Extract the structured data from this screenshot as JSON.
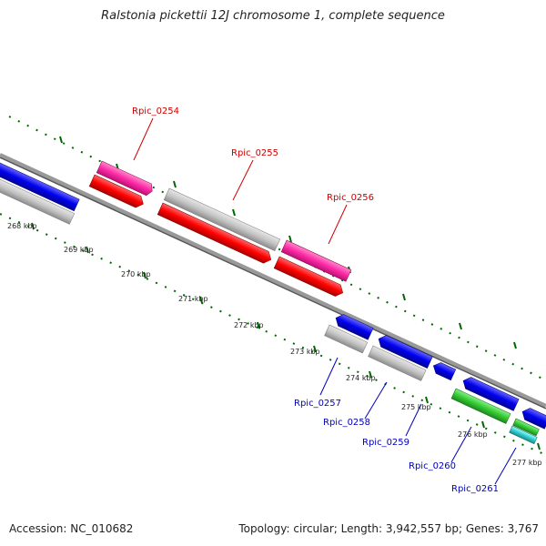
{
  "title": "Ralstonia pickettii 12J chromosome 1, complete sequence",
  "accession": "Accession: NC_010682",
  "summary": "Topology: circular; Length: 3,942,557 bp; Genes: 3,767",
  "tick_labels": [
    "268 kbp",
    "269 kbp",
    "270 kbp",
    "271 kbp",
    "272 kbp",
    "273 kbp",
    "274 kbp",
    "275 kbp",
    "276 kbp",
    "277 kbp"
  ],
  "gene_labels_top": [
    "Rpic_0254",
    "Rpic_0255",
    "Rpic_0256"
  ],
  "gene_labels_bottom": [
    "Rpic_0257",
    "Rpic_0258",
    "Rpic_0259",
    "Rpic_0260",
    "Rpic_0261"
  ],
  "colors": {
    "forward_cds": "#ff0000",
    "forward_gene_pink": "#ff2aa5",
    "reverse_cds": "#0000ee",
    "gene_gray": "#bbbbbb",
    "green_feature": "#33cc33",
    "cyan_feature": "#33cccc",
    "backbone": "#888888",
    "tick_green": "#006600",
    "label_red": "#cc0000",
    "label_blue": "#0000bb"
  }
}
